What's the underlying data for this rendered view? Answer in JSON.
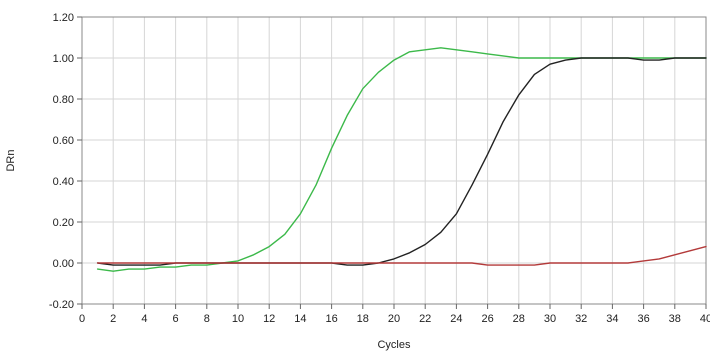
{
  "chart_data": {
    "type": "line",
    "xlabel": "Cycles",
    "ylabel": "DRn",
    "xlim": [
      0,
      40
    ],
    "ylim": [
      -0.2,
      1.2
    ],
    "x_ticks": [
      0,
      2,
      4,
      6,
      8,
      10,
      12,
      14,
      16,
      18,
      20,
      22,
      24,
      26,
      28,
      30,
      32,
      34,
      36,
      38,
      40
    ],
    "y_ticks": [
      -0.2,
      0,
      0.2,
      0.4,
      0.6,
      0.8,
      1.0,
      1.2
    ],
    "x_tick_labels": [
      "0",
      "2",
      "4",
      "6",
      "8",
      "10",
      "12",
      "14",
      "16",
      "18",
      "20",
      "22",
      "24",
      "26",
      "28",
      "30",
      "32",
      "34",
      "36",
      "38",
      "40"
    ],
    "y_tick_labels": [
      "-0.20",
      "0.00",
      "0.20",
      "0.40",
      "0.60",
      "0.80",
      "1.00",
      "1.20"
    ],
    "grid": true,
    "series": [
      {
        "color": "#3cb94a",
        "x": [
          1,
          2,
          3,
          4,
          5,
          6,
          7,
          8,
          9,
          10,
          11,
          12,
          13,
          14,
          15,
          16,
          17,
          18,
          19,
          20,
          21,
          22,
          23,
          24,
          25,
          26,
          27,
          28,
          29,
          30,
          31,
          32,
          33,
          34,
          35,
          36,
          37,
          38,
          39,
          40
        ],
        "values": [
          -0.03,
          -0.04,
          -0.03,
          -0.03,
          -0.02,
          -0.02,
          -0.01,
          -0.01,
          0.0,
          0.01,
          0.04,
          0.08,
          0.14,
          0.24,
          0.38,
          0.56,
          0.72,
          0.85,
          0.93,
          0.99,
          1.03,
          1.04,
          1.05,
          1.04,
          1.03,
          1.02,
          1.01,
          1.0,
          1.0,
          1.0,
          1.0,
          1.0,
          1.0,
          1.0,
          1.0,
          1.0,
          1.0,
          1.0,
          1.0,
          1.0
        ]
      },
      {
        "color": "#222222",
        "x": [
          1,
          2,
          3,
          4,
          5,
          6,
          7,
          8,
          9,
          10,
          11,
          12,
          13,
          14,
          15,
          16,
          17,
          18,
          19,
          20,
          21,
          22,
          23,
          24,
          25,
          26,
          27,
          28,
          29,
          30,
          31,
          32,
          33,
          34,
          35,
          36,
          37,
          38,
          39,
          40
        ],
        "values": [
          0.0,
          -0.01,
          -0.01,
          -0.01,
          -0.01,
          0.0,
          0.0,
          0.0,
          0.0,
          0.0,
          0.0,
          0.0,
          0.0,
          0.0,
          0.0,
          0.0,
          -0.01,
          -0.01,
          0.0,
          0.02,
          0.05,
          0.09,
          0.15,
          0.24,
          0.38,
          0.53,
          0.69,
          0.82,
          0.92,
          0.97,
          0.99,
          1.0,
          1.0,
          1.0,
          1.0,
          0.99,
          0.99,
          1.0,
          1.0,
          1.0
        ]
      },
      {
        "color": "#b33a3a",
        "x": [
          1,
          2,
          3,
          4,
          5,
          6,
          7,
          8,
          9,
          10,
          11,
          12,
          13,
          14,
          15,
          16,
          17,
          18,
          19,
          20,
          21,
          22,
          23,
          24,
          25,
          26,
          27,
          28,
          29,
          30,
          31,
          32,
          33,
          34,
          35,
          36,
          37,
          38,
          39,
          40
        ],
        "values": [
          0.0,
          0.0,
          0.0,
          0.0,
          0.0,
          0.0,
          0.0,
          0.0,
          0.0,
          0.0,
          0.0,
          0.0,
          0.0,
          0.0,
          0.0,
          0.0,
          0.0,
          0.0,
          0.0,
          0.0,
          0.0,
          0.0,
          0.0,
          0.0,
          0.0,
          -0.01,
          -0.01,
          -0.01,
          -0.01,
          0.0,
          0.0,
          0.0,
          0.0,
          0.0,
          0.0,
          0.01,
          0.02,
          0.04,
          0.06,
          0.08
        ]
      }
    ]
  }
}
